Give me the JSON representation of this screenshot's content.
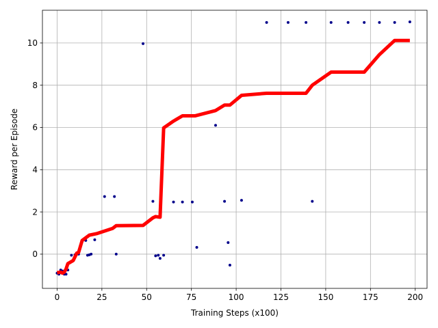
{
  "chart_data": {
    "type": "line",
    "title": "",
    "xlabel": "Training Steps (x100)",
    "ylabel": "Reward per Episode",
    "xlim": [
      -8.2,
      206.6
    ],
    "ylim": [
      -1.62,
      11.55
    ],
    "x_ticks": [
      0,
      25,
      50,
      75,
      100,
      125,
      150,
      175,
      200
    ],
    "y_ticks": [
      0,
      2,
      4,
      6,
      8,
      10
    ],
    "grid": true,
    "legend": "none",
    "colors": {
      "line": "#ff0000",
      "points": "#00008b"
    },
    "series": [
      {
        "type": "scatter",
        "points": [
          [
            0,
            -0.9
          ],
          [
            1,
            -0.95
          ],
          [
            2,
            -0.75
          ],
          [
            3,
            -0.8
          ],
          [
            4,
            -0.95
          ],
          [
            5,
            -0.95
          ],
          [
            6,
            -0.75
          ],
          [
            8,
            -0.05
          ],
          [
            10,
            -0.03
          ],
          [
            12,
            0.0
          ],
          [
            16,
            0.65
          ],
          [
            17,
            -0.05
          ],
          [
            18,
            -0.03
          ],
          [
            19,
            0.0
          ],
          [
            21,
            0.68
          ],
          [
            26.5,
            2.73
          ],
          [
            32,
            2.73
          ],
          [
            33,
            0.0
          ],
          [
            48,
            9.97
          ],
          [
            53.5,
            2.5
          ],
          [
            55,
            -0.08
          ],
          [
            56.5,
            -0.05
          ],
          [
            57.5,
            -0.2
          ],
          [
            59.5,
            -0.05
          ],
          [
            65,
            2.47
          ],
          [
            70,
            2.47
          ],
          [
            75.5,
            2.47
          ],
          [
            78,
            0.32
          ],
          [
            88.5,
            6.1
          ],
          [
            93.5,
            2.5
          ],
          [
            95.5,
            0.55
          ],
          [
            96.5,
            -0.52
          ],
          [
            103,
            2.55
          ],
          [
            117,
            10.97
          ],
          [
            129,
            10.97
          ],
          [
            139,
            10.97
          ],
          [
            142.5,
            2.5
          ],
          [
            153,
            10.97
          ],
          [
            162.5,
            10.97
          ],
          [
            171.5,
            10.97
          ],
          [
            180,
            10.97
          ],
          [
            188.5,
            10.97
          ],
          [
            197,
            11.0
          ]
        ]
      },
      {
        "type": "line",
        "points": [
          [
            0,
            -0.88
          ],
          [
            2,
            -0.85
          ],
          [
            3,
            -0.9
          ],
          [
            4,
            -0.85
          ],
          [
            5,
            -0.7
          ],
          [
            6,
            -0.45
          ],
          [
            9,
            -0.3
          ],
          [
            11,
            0.05
          ],
          [
            12,
            0.08
          ],
          [
            14,
            0.65
          ],
          [
            18,
            0.9
          ],
          [
            22,
            0.97
          ],
          [
            31,
            1.22
          ],
          [
            33,
            1.35
          ],
          [
            48,
            1.36
          ],
          [
            53.5,
            1.72
          ],
          [
            55,
            1.78
          ],
          [
            57.5,
            1.75
          ],
          [
            59.5,
            5.98
          ],
          [
            65,
            6.3
          ],
          [
            70,
            6.55
          ],
          [
            77,
            6.55
          ],
          [
            88.5,
            6.8
          ],
          [
            93.5,
            7.06
          ],
          [
            96.5,
            7.06
          ],
          [
            103,
            7.52
          ],
          [
            117,
            7.62
          ],
          [
            139,
            7.62
          ],
          [
            142.5,
            8.0
          ],
          [
            153,
            8.62
          ],
          [
            171.5,
            8.62
          ],
          [
            180,
            9.45
          ],
          [
            188.5,
            10.12
          ],
          [
            197,
            10.12
          ]
        ]
      }
    ]
  }
}
